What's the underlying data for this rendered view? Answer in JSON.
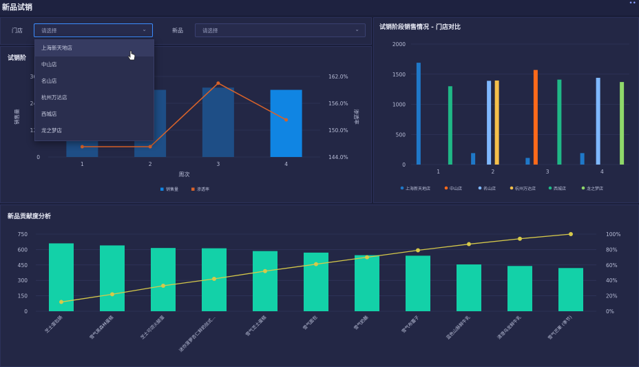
{
  "header": {
    "title": "新品试销"
  },
  "filters": {
    "store_label": "门店",
    "store_placeholder": "请选择",
    "product_label": "新品",
    "product_placeholder": "请选择"
  },
  "dropdown": {
    "options": [
      "上海新天地店",
      "中山店",
      "名山店",
      "杭州万达店",
      "西城店",
      "龙之梦店"
    ],
    "hovered_index": 0
  },
  "colors": {
    "background": "#1b1f3a",
    "panel": "#232745",
    "bar_blue": "#1e4e86",
    "bar_blue_highlight": "#1085e3",
    "line_orange": "#d7622a",
    "bar_teal": "#13d1a8",
    "line_yellow": "#d6c94a",
    "store_colors": [
      "#1f78c8",
      "#ff6a1a",
      "#7fb8ff",
      "#f5c04a",
      "#1fb886",
      "#8fd86a"
    ]
  },
  "chart_data": [
    {
      "type": "bar",
      "title": "试销阶段销售",
      "title_visible": "试销阶",
      "categories": [
        "1",
        "2",
        "3",
        "4"
      ],
      "xlabel": "周次",
      "ylabel": "销售量",
      "y2label": "渗透率",
      "ylim": [
        0,
        360
      ],
      "yticks": [
        "0",
        "120",
        "240",
        "360"
      ],
      "y2lim": [
        144,
        162
      ],
      "y2ticks": [
        "144.0%",
        "150.0%",
        "156.0%",
        "162.0%"
      ],
      "series": [
        {
          "name": "销售量",
          "type": "bar",
          "values": [
            80,
            300,
            310,
            300
          ],
          "highlight_index": 3
        },
        {
          "name": "渗透率",
          "type": "line",
          "axis": "right",
          "values": [
            146.3,
            146.3,
            160.5,
            152.3
          ]
        }
      ],
      "legend": "bottom"
    },
    {
      "type": "bar",
      "title": "试销阶段销售情况 - 门店对比",
      "categories": [
        "1",
        "2",
        "3",
        "4"
      ],
      "ylim": [
        0,
        2000
      ],
      "yticks": [
        "0",
        "500",
        "1000",
        "1500",
        "2000"
      ],
      "series": [
        {
          "name": "上海新天地店",
          "values": [
            1690,
            190,
            110,
            190
          ]
        },
        {
          "name": "中山店",
          "values": [
            0,
            0,
            1570,
            0
          ]
        },
        {
          "name": "名山店",
          "values": [
            0,
            1390,
            0,
            1440
          ]
        },
        {
          "name": "杭州万达店",
          "values": [
            0,
            1395,
            0,
            0
          ]
        },
        {
          "name": "西城店",
          "values": [
            1300,
            0,
            1410,
            0
          ]
        },
        {
          "name": "龙之梦店",
          "values": [
            0,
            0,
            0,
            1370
          ]
        }
      ],
      "legend": "bottom"
    },
    {
      "type": "bar",
      "title": "新品贡献度分析",
      "categories": [
        "芝士蛋包肠",
        "雪气黑森林蛋糕",
        "芝士可颂火腿蛋",
        "迷你菠萝杏仁鲜奶挞式...",
        "雪气芝士蛋糕",
        "雪气面包",
        "雪气奶酪",
        "雪气布蕾子",
        "蓝色山脉鲜牛乳",
        "清澄乌龙鲜牛乳",
        "雪气芒果 (季节)"
      ],
      "ylim": [
        0,
        750
      ],
      "yticks": [
        "0",
        "150",
        "300",
        "450",
        "600",
        "750"
      ],
      "y2ticks": [
        "0%",
        "20%",
        "40%",
        "60%",
        "80%",
        "100%"
      ],
      "series": [
        {
          "name": "销售量",
          "type": "bar",
          "values": [
            660,
            640,
            615,
            612,
            585,
            570,
            545,
            540,
            455,
            440,
            420
          ]
        },
        {
          "name": "累计占比",
          "type": "line",
          "axis": "right",
          "values": [
            12,
            22,
            33,
            42,
            52,
            61,
            70,
            79,
            87,
            94,
            100
          ]
        }
      ]
    }
  ]
}
